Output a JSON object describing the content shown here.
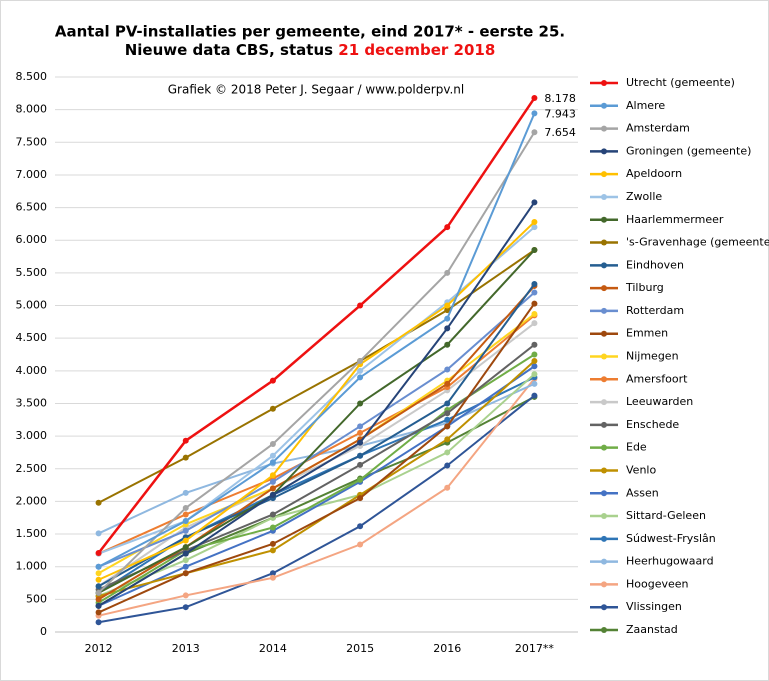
{
  "chart_data": {
    "type": "line",
    "title": "Aantal PV-installaties  per gemeente, eind 2017* - eerste 25.",
    "subtitle_prefix": "Nieuwe data CBS, status ",
    "subtitle_highlight": "21 december 2018",
    "credit": "Grafiek  © 2018  Peter J. Segaar / www.polderpv.nl",
    "categories": [
      "2012",
      "2013",
      "2014",
      "2015",
      "2016",
      "2017**"
    ],
    "ylim": [
      0,
      8500
    ],
    "yticks": [
      0,
      {
        "value": 500,
        "label": "500"
      },
      {
        "value": 1000,
        "label": "1.000"
      },
      {
        "value": 1500,
        "label": "1.500"
      },
      {
        "value": 2000,
        "label": "2.000"
      },
      {
        "value": 2500,
        "label": "2.500"
      },
      {
        "value": 3000,
        "label": "3.000"
      },
      {
        "value": 3500,
        "label": "3.500"
      },
      {
        "value": 4000,
        "label": "4.000"
      },
      {
        "value": 4500,
        "label": "4.500"
      },
      {
        "value": 5000,
        "label": "5.000"
      },
      {
        "value": 5500,
        "label": "5.500"
      },
      {
        "value": 6000,
        "label": "6.000"
      },
      {
        "value": 6500,
        "label": "6.500"
      },
      {
        "value": 7000,
        "label": "7.000"
      },
      {
        "value": 7500,
        "label": "7.500"
      },
      {
        "value": 8000,
        "label": "8.000"
      },
      {
        "value": 8500,
        "label": "8.500"
      }
    ],
    "grid": true,
    "legend": "right",
    "series": [
      {
        "name": "Utrecht (gemeente)",
        "color": "#ee1111",
        "values": [
          1210,
          2930,
          3850,
          5000,
          6200,
          8178
        ],
        "value_labels": [
          null,
          null,
          null,
          null,
          null,
          "8.178"
        ]
      },
      {
        "name": "Almere",
        "color": "#5b9bd5",
        "values": [
          1000,
          1700,
          2600,
          3900,
          4800,
          7943
        ],
        "value_labels": [
          null,
          null,
          null,
          null,
          null,
          "7.943"
        ]
      },
      {
        "name": "Amsterdam",
        "color": "#a5a5a5",
        "values": [
          600,
          1900,
          2880,
          4150,
          5500,
          7654
        ],
        "value_labels": [
          null,
          null,
          null,
          null,
          null,
          "7.654"
        ]
      },
      {
        "name": "Groningen (gemeente)",
        "color": "#264478",
        "values": [
          400,
          1200,
          2100,
          2900,
          4650,
          6580
        ]
      },
      {
        "name": "Apeldoorn",
        "color": "#ffc000",
        "values": [
          800,
          1400,
          2400,
          4100,
          5000,
          6280
        ]
      },
      {
        "name": "Zwolle",
        "color": "#9dc3e6",
        "values": [
          1200,
          1700,
          2700,
          4000,
          5050,
          6200
        ]
      },
      {
        "name": "Haarlemmermeer",
        "color": "#43682b",
        "values": [
          600,
          1300,
          2100,
          3500,
          4400,
          5850
        ]
      },
      {
        "name": "'s-Gravenhage (gemeente)",
        "color": "#997300",
        "values": [
          1980,
          2670,
          3420,
          4150,
          4930,
          5850
        ]
      },
      {
        "name": "Eindhoven",
        "color": "#255e91",
        "values": [
          700,
          1450,
          2050,
          2700,
          3500,
          5330
        ]
      },
      {
        "name": "Tilburg",
        "color": "#c55a11",
        "values": [
          500,
          1300,
          2200,
          2950,
          3800,
          5300
        ]
      },
      {
        "name": "Rotterdam",
        "color": "#698ed0",
        "values": [
          1000,
          1550,
          2300,
          3150,
          4020,
          5200
        ]
      },
      {
        "name": "Emmen",
        "color": "#9e480e",
        "values": [
          300,
          900,
          1350,
          2050,
          3150,
          5030
        ]
      },
      {
        "name": "Nijmegen",
        "color": "#ffd520",
        "values": [
          900,
          1650,
          2200,
          2950,
          3850,
          4870
        ]
      },
      {
        "name": "Amersfoort",
        "color": "#ed7d31",
        "values": [
          1200,
          1800,
          2350,
          3050,
          3750,
          4850
        ]
      },
      {
        "name": "Leeuwarden",
        "color": "#c9c9c9",
        "values": [
          700,
          1600,
          2200,
          2850,
          3700,
          4730
        ]
      },
      {
        "name": "Enschede",
        "color": "#636363",
        "values": [
          650,
          1250,
          1800,
          2560,
          3350,
          4400
        ]
      },
      {
        "name": "Ede",
        "color": "#70ad47",
        "values": [
          450,
          1250,
          1600,
          2330,
          3400,
          4250
        ]
      },
      {
        "name": "Venlo",
        "color": "#bf9000",
        "values": [
          550,
          900,
          1250,
          2100,
          2950,
          4150
        ]
      },
      {
        "name": "Assen",
        "color": "#4472c4",
        "values": [
          400,
          1000,
          1550,
          2300,
          3150,
          4070
        ]
      },
      {
        "name": "Sittard-Geleen",
        "color": "#a9d18e",
        "values": [
          550,
          1100,
          1750,
          2100,
          2750,
          3950
        ]
      },
      {
        "name": "Súdwest-Fryslân",
        "color": "#2e75b6",
        "values": [
          600,
          1450,
          2100,
          2700,
          3250,
          3900
        ]
      },
      {
        "name": "Heerhugowaard",
        "color": "#8fb8e0",
        "values": [
          1510,
          2130,
          2580,
          2850,
          3200,
          3800
        ]
      },
      {
        "name": "Hoogeveen",
        "color": "#f4a582",
        "values": [
          250,
          560,
          830,
          1340,
          2210,
          3880
        ]
      },
      {
        "name": "Vlissingen",
        "color": "#2f5597",
        "values": [
          150,
          380,
          900,
          1620,
          2550,
          3620
        ]
      },
      {
        "name": "Zaanstad",
        "color": "#548235",
        "values": [
          400,
          1200,
          1750,
          2350,
          2900,
          3600
        ]
      }
    ]
  }
}
